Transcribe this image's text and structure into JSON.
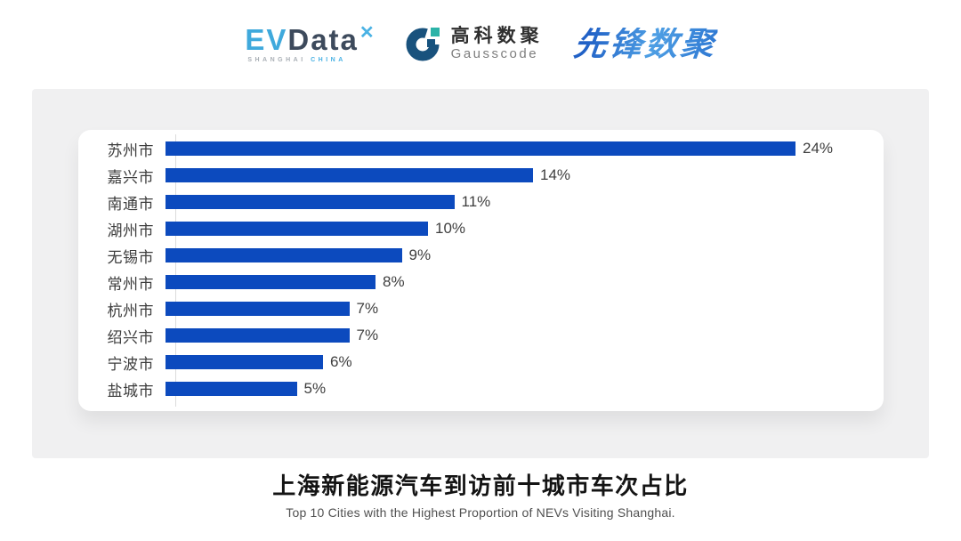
{
  "header": {
    "evdata": {
      "ev": "EV",
      "data": "Data",
      "sub_left": "SHANGHAI",
      "sub_right": "CHINA"
    },
    "gausscode": {
      "cn": "高科数聚",
      "en": "Gausscode"
    },
    "xianfeng": {
      "text": "先锋数聚"
    }
  },
  "chart_data": {
    "type": "bar",
    "orientation": "horizontal",
    "title": "上海新能源汽车到访前十城市车次占比",
    "categories": [
      "苏州市",
      "嘉兴市",
      "南通市",
      "湖州市",
      "无锡市",
      "常州市",
      "杭州市",
      "绍兴市",
      "宁波市",
      "盐城市"
    ],
    "values": [
      24,
      14,
      11,
      10,
      9,
      8,
      7,
      7,
      6,
      5
    ],
    "value_labels": [
      "24%",
      "14%",
      "11%",
      "10%",
      "9%",
      "8%",
      "7%",
      "7%",
      "6%",
      "5%"
    ],
    "unit": "%",
    "xlim": [
      0,
      27
    ],
    "grid": false,
    "legend": false,
    "axis_baseline": true,
    "bar_color": "#0c4abe",
    "label_color": "#3d3d3d",
    "axis_line_color": "#dcdcdc"
  },
  "footer": {
    "title": "上海新能源汽车到访前十城市车次占比",
    "subtitle": "Top 10 Cities with the Highest Proportion of  NEVs Visiting Shanghai."
  }
}
